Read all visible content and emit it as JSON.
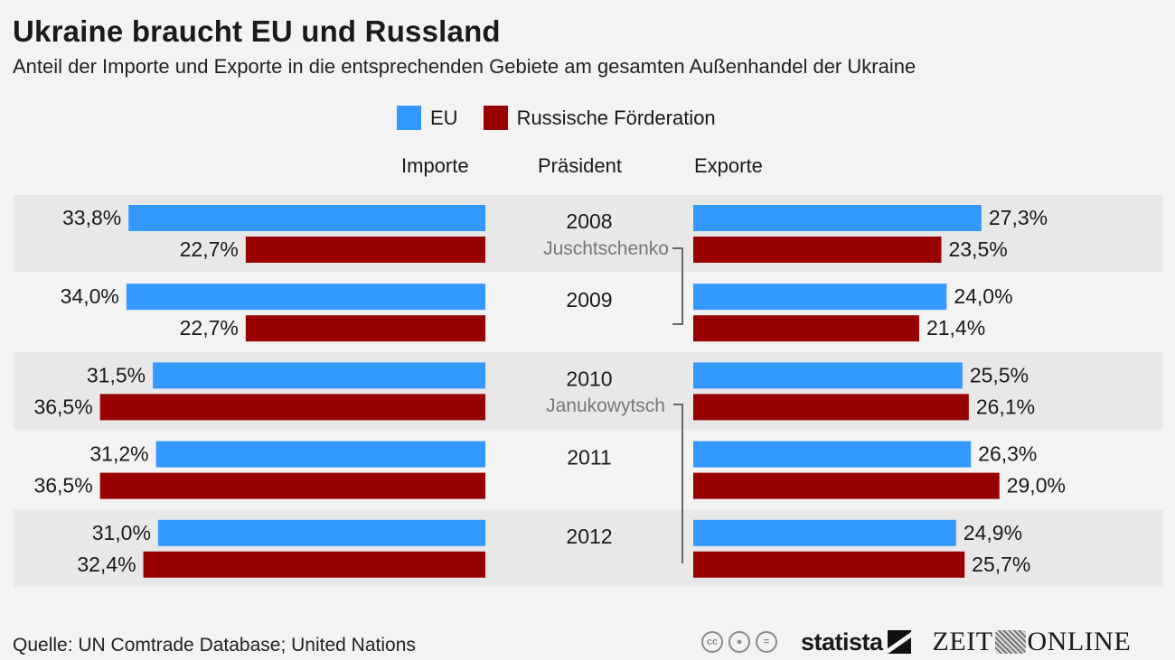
{
  "header": {
    "title": "Ukraine braucht EU und Russland",
    "subtitle": "Anteil der Importe und Exporte in die entsprechenden Gebiete am gesamten Außenhandel der Ukraine"
  },
  "legend": [
    {
      "label": "EU",
      "color": "#3399ff"
    },
    {
      "label": "Russische Förderation",
      "color": "#990000"
    }
  ],
  "columns": {
    "imports": "Importe",
    "president": "Präsident",
    "exports": "Exporte"
  },
  "presidents": [
    {
      "name": "Juschtschenko",
      "years": [
        "2008",
        "2009"
      ]
    },
    {
      "name": "Janukowytsch",
      "years": [
        "2010",
        "2011",
        "2012"
      ]
    }
  ],
  "footer": {
    "source": "Quelle: UN Comtrade Database; United Nations",
    "logos": [
      "cc-icon",
      "by-icon",
      "nd-icon",
      "statista",
      "ZEIT ONLINE"
    ],
    "statista_label": "statista",
    "zeit_left": "ZEIT",
    "zeit_right": "ONLINE"
  },
  "chart_data": {
    "type": "bar",
    "title": "Ukraine braucht EU und Russland",
    "subtitle": "Anteil der Importe und Exporte in die entsprechenden Gebiete am gesamten Außenhandel der Ukraine",
    "categories": [
      "2008",
      "2009",
      "2010",
      "2011",
      "2012"
    ],
    "unit": "%",
    "imports": {
      "label": "Importe",
      "series": [
        {
          "name": "EU",
          "color": "#3399ff",
          "values": [
            33.8,
            34.0,
            31.5,
            31.2,
            31.0
          ],
          "labels": [
            "33,8%",
            "34,0%",
            "31,5%",
            "31,2%",
            "31,0%"
          ]
        },
        {
          "name": "Russische Förderation",
          "color": "#990000",
          "values": [
            22.7,
            22.7,
            36.5,
            36.5,
            32.4
          ],
          "labels": [
            "22,7%",
            "22,7%",
            "36,5%",
            "36,5%",
            "32,4%"
          ]
        }
      ]
    },
    "exports": {
      "label": "Exporte",
      "series": [
        {
          "name": "EU",
          "color": "#3399ff",
          "values": [
            27.3,
            24.0,
            25.5,
            26.3,
            24.9
          ],
          "labels": [
            "27,3%",
            "24,0%",
            "25,5%",
            "26,3%",
            "24,9%"
          ]
        },
        {
          "name": "Russische Förderation",
          "color": "#990000",
          "values": [
            23.5,
            21.4,
            26.1,
            29.0,
            25.7
          ],
          "labels": [
            "23,5%",
            "21,4%",
            "26,1%",
            "29,0%",
            "25,7%"
          ]
        }
      ]
    },
    "legend_position": "top-center",
    "grid": false
  }
}
